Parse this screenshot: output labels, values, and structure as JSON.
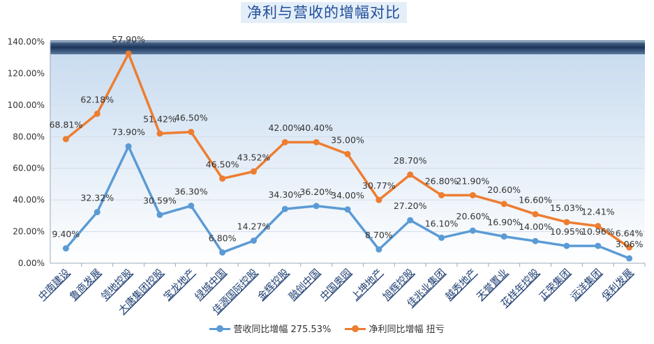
{
  "title": "净利与营收的增幅对比",
  "chart_data": {
    "type": "line",
    "title": "净利与营收的增幅对比",
    "categories": [
      "中南建设",
      "鲁商发展",
      "领地控股",
      "大唐集团控股",
      "宝龙地产",
      "绿城中国",
      "佳源国际控股",
      "金辉控股",
      "融创中国",
      "中国奥园",
      "上坤地产",
      "旭辉控股",
      "佳兆业集团",
      "越秀地产",
      "天誉置业",
      "花样年控股",
      "正荣集团",
      "远洋集团",
      "保利发展"
    ],
    "ylim": [
      0,
      140
    ],
    "yticks": [
      "0.00%",
      "20.00%",
      "40.00%",
      "60.00%",
      "80.00%",
      "100.00%",
      "120.00%",
      "140.00%"
    ],
    "grid": true,
    "legend_position": "bottom",
    "series": [
      {
        "name": "营收同比增幅 275.53%",
        "color": "#5b9bd5",
        "values": [
          9.4,
          32.32,
          73.9,
          30.59,
          36.3,
          6.8,
          14.27,
          34.3,
          36.2,
          34.0,
          8.7,
          27.2,
          16.1,
          20.6,
          16.9,
          14.0,
          10.95,
          10.96,
          3.06
        ],
        "labels": [
          "9.40%",
          "32.32%",
          "73.90%",
          "30.59%",
          "36.30%",
          "6.80%",
          "14.27%",
          "34.30%",
          "36.20%",
          "34.00%",
          "8.70%",
          "27.20%",
          "16.10%",
          "20.60%",
          "16.90%",
          "14.00%",
          "10.95%",
          "10.96%",
          "3.06%"
        ]
      },
      {
        "name": "净利同比增幅 扭亏",
        "color": "#ed7d31",
        "values": [
          78.5,
          94.5,
          132.5,
          82,
          83,
          53.5,
          58,
          76.5,
          76.5,
          69,
          40,
          56,
          43,
          43,
          37.5,
          31,
          26,
          23.5,
          10
        ],
        "labels": [
          "68.81%",
          "62.18%",
          "57.90%",
          "51.42%",
          "46.50%",
          "46.50%",
          "43.52%",
          "42.00%",
          "40.40%",
          "35.00%",
          "30.77%",
          "28.70%",
          "26.80%",
          "21.90%",
          "20.60%",
          "16.60%",
          "15.03%",
          "12.41%",
          "6.64%"
        ]
      }
    ]
  },
  "colors": {
    "plot_gradient_top": "#c9dcef",
    "plot_gradient_bottom": "#ffffff",
    "top_band": "#2b4466",
    "gridline": "#d0dbe7"
  }
}
